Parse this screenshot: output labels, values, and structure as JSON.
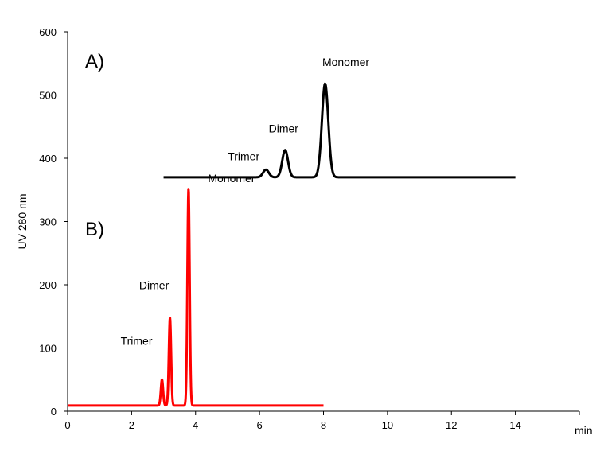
{
  "chart_data": {
    "type": "line",
    "xlabel": "min",
    "ylabel": "UV 280 nm",
    "xlim": [
      0,
      16
    ],
    "ylim": [
      0,
      600
    ],
    "xticks": [
      "0",
      "2",
      "4",
      "6",
      "8",
      "10",
      "12",
      "14"
    ],
    "yticks": [
      "0",
      "100",
      "200",
      "300",
      "400",
      "500",
      "600"
    ],
    "grid": false,
    "panel_labels": [
      "A)",
      "B)"
    ],
    "series": [
      {
        "color": "#000000",
        "baseline": 370,
        "x_range": [
          3,
          14
        ],
        "peaks": [
          {
            "x": 6.2,
            "y": 382,
            "label": "Trimer"
          },
          {
            "x": 6.8,
            "y": 413,
            "label": "Dimer"
          },
          {
            "x": 8.05,
            "y": 518,
            "label": "Monomer"
          }
        ]
      },
      {
        "color": "#ff0000",
        "baseline": 9,
        "x_range": [
          0,
          8
        ],
        "peaks": [
          {
            "x": 2.95,
            "y": 50,
            "label": "Trimer"
          },
          {
            "x": 3.2,
            "y": 148,
            "label": "Dimer"
          },
          {
            "x": 3.78,
            "y": 352,
            "label": "Monomer"
          }
        ]
      }
    ]
  }
}
